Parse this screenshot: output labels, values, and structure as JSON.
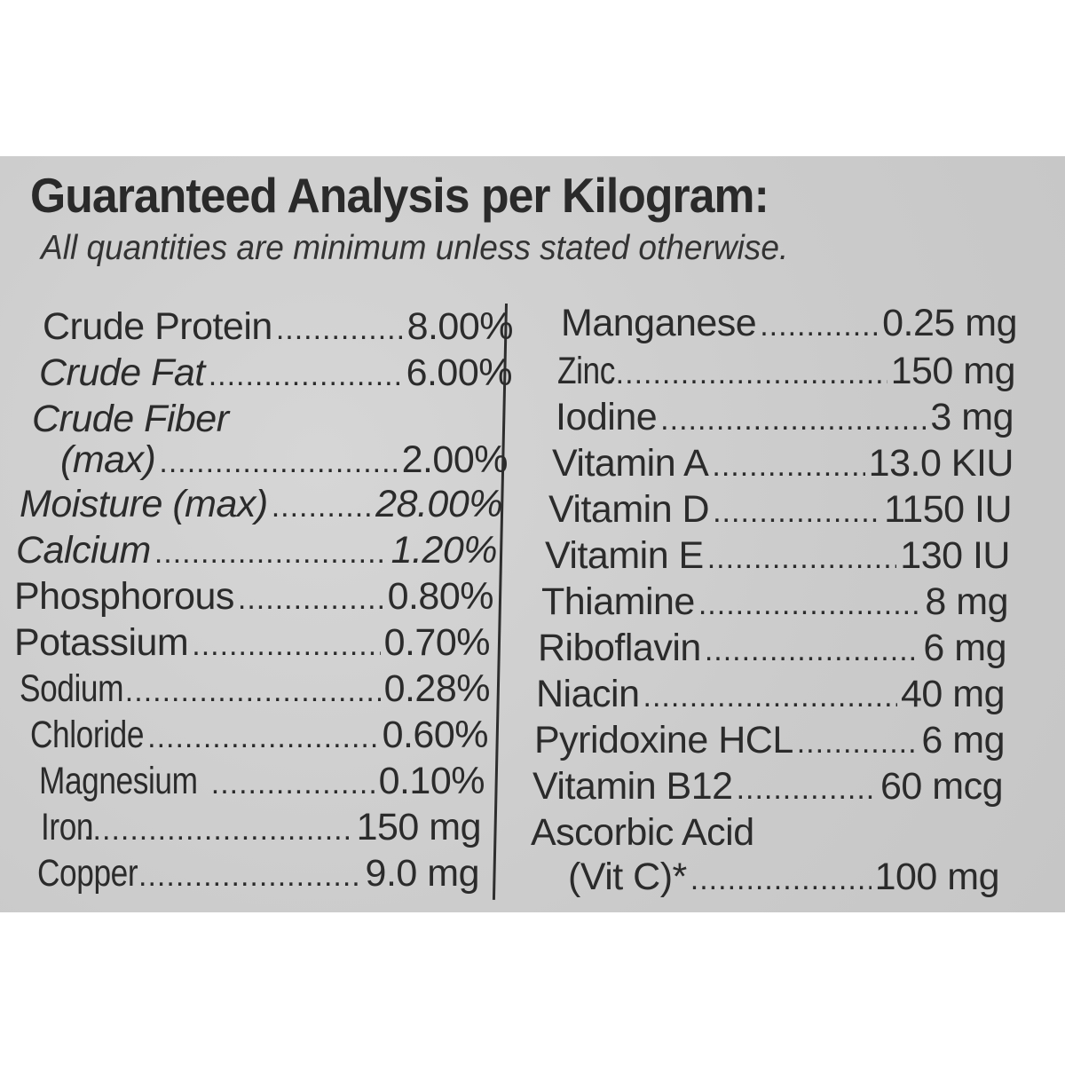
{
  "title": "Guaranteed Analysis per Kilogram:",
  "subtitle": "All quantities are minimum unless stated otherwise.",
  "left_column": [
    {
      "name": "Crude Protein",
      "value": "8.00%"
    },
    {
      "name": "Crude Fat",
      "value": "6.00%"
    },
    {
      "name": "Crude Fiber",
      "value": ""
    },
    {
      "name": "(max)",
      "value": "2.00%"
    },
    {
      "name": "Moisture (max)",
      "value": "28.00%"
    },
    {
      "name": "Calcium",
      "value": "1.20%"
    },
    {
      "name": "Phosphorous",
      "value": "0.80%"
    },
    {
      "name": "Potassium",
      "value": "0.70%"
    },
    {
      "name": "Sodium",
      "value": "0.28%"
    },
    {
      "name": "Chloride",
      "value": "0.60%"
    },
    {
      "name": "Magnesium",
      "value": "0.10%"
    },
    {
      "name": "Iron",
      "value": "150 mg"
    },
    {
      "name": "Copper",
      "value": "9.0 mg"
    }
  ],
  "right_column": [
    {
      "name": "Manganese",
      "value": "0.25 mg"
    },
    {
      "name": "Zinc",
      "value": "150 mg"
    },
    {
      "name": "Iodine",
      "value": "3 mg"
    },
    {
      "name": "Vitamin A",
      "value": "13.0 KIU"
    },
    {
      "name": "Vitamin D",
      "value": "1150 IU"
    },
    {
      "name": "Vitamin E",
      "value": "130 IU"
    },
    {
      "name": "Thiamine",
      "value": "8 mg"
    },
    {
      "name": "Riboflavin",
      "value": "6 mg"
    },
    {
      "name": "Niacin",
      "value": "40 mg"
    },
    {
      "name": "Pyridoxine HCL",
      "value": "6 mg"
    },
    {
      "name": "Vitamin B12",
      "value": "60 mcg"
    },
    {
      "name": "Ascorbic Acid",
      "value": ""
    },
    {
      "name": "(Vit C)*",
      "value": "100 mg"
    }
  ]
}
